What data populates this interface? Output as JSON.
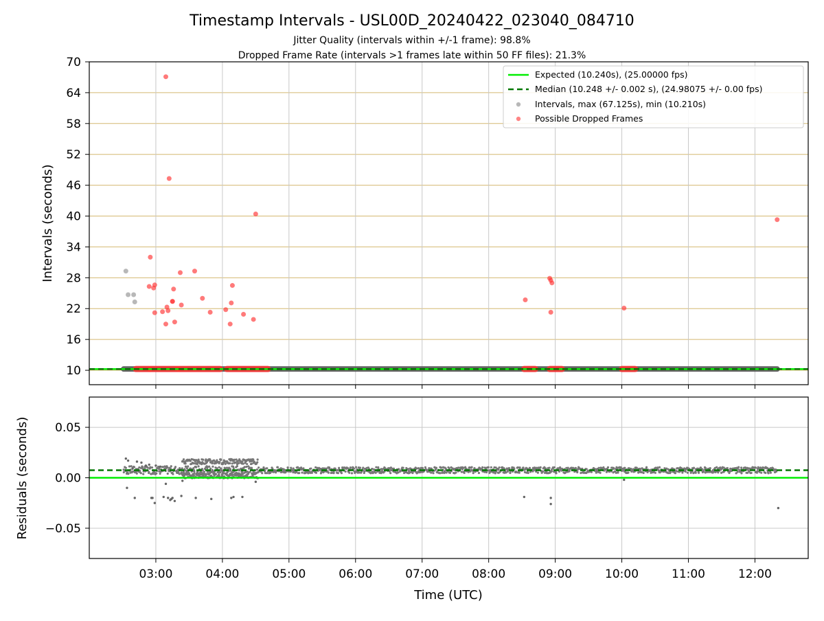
{
  "figure": {
    "title": "Timestamp Intervals - USL00D_20240422_023040_084710",
    "subtitle_1": "Jitter Quality (intervals within +/-1 frame): 98.8%",
    "subtitle_2": "Dropped Frame Rate (intervals >1 frames late within 50 FF files): 21.3%",
    "xlabel": "Time (UTC)"
  },
  "colors": {
    "expected": "#00ee00",
    "median": "#007700",
    "intervals": "#888888",
    "dropped": "#ff3333",
    "horizontal_grid": "#d4b870",
    "vertical_grid": "#c8c8c8",
    "dense_band": "#555555"
  },
  "chart_data": [
    {
      "type": "scatter",
      "ylabel": "Intervals (seconds)",
      "xlim": [
        "02:00",
        "12:48"
      ],
      "ylim": [
        7.2,
        70
      ],
      "x_ticks": [
        "03:00",
        "04:00",
        "05:00",
        "06:00",
        "07:00",
        "08:00",
        "09:00",
        "10:00",
        "11:00",
        "12:00"
      ],
      "y_ticks": [
        10,
        16,
        22,
        28,
        34,
        40,
        46,
        52,
        58,
        64,
        70
      ],
      "grid": true,
      "legend_position": "top-right",
      "legend": [
        "Expected (10.240s), (25.00000 fps)",
        "Median (10.248 +/- 0.002 s), (24.98075 +/- 0.00 fps)",
        "Intervals, max (67.125s), min (10.210s)",
        "Possible Dropped Frames"
      ],
      "expected_value": 10.24,
      "median_value": 10.248,
      "intervals_band": {
        "x_range": [
          "02:31",
          "12:20"
        ],
        "value": 10.25
      },
      "dropped_bands": [
        {
          "x_range": [
            "02:42",
            "02:54"
          ],
          "value": 10.25
        },
        {
          "x_range": [
            "02:55",
            "03:20"
          ],
          "value": 10.25
        },
        {
          "x_range": [
            "03:21",
            "03:58"
          ],
          "value": 10.25
        },
        {
          "x_range": [
            "04:04",
            "04:41"
          ],
          "value": 10.25
        },
        {
          "x_range": [
            "08:32",
            "08:42"
          ],
          "value": 10.25
        },
        {
          "x_range": [
            "08:55",
            "09:06"
          ],
          "value": 10.25
        },
        {
          "x_range": [
            "10:00",
            "10:12"
          ],
          "value": 10.25
        }
      ],
      "series": [
        {
          "name": "Intervals, max (67.125s), min (10.210s)",
          "points": [
            [
              "02:33",
              29.3
            ],
            [
              "02:35",
              24.7
            ],
            [
              "02:40",
              24.7
            ],
            [
              "02:41",
              23.3
            ]
          ]
        },
        {
          "name": "Possible Dropped Frames",
          "points": [
            [
              "02:54",
              26.3
            ],
            [
              "02:55",
              32.0
            ],
            [
              "02:58",
              26.0
            ],
            [
              "02:59",
              26.6
            ],
            [
              "02:59",
              21.2
            ],
            [
              "03:06",
              21.4
            ],
            [
              "03:09",
              67.1
            ],
            [
              "03:09",
              19.0
            ],
            [
              "03:10",
              22.3
            ],
            [
              "03:11",
              21.6
            ],
            [
              "03:12",
              47.3
            ],
            [
              "03:15",
              23.4
            ],
            [
              "03:15",
              23.4
            ],
            [
              "03:16",
              25.8
            ],
            [
              "03:17",
              19.4
            ],
            [
              "03:22",
              29.0
            ],
            [
              "03:23",
              22.7
            ],
            [
              "03:35",
              29.3
            ],
            [
              "03:42",
              24.0
            ],
            [
              "03:49",
              21.3
            ],
            [
              "04:03",
              21.8
            ],
            [
              "04:07",
              19.0
            ],
            [
              "04:08",
              23.1
            ],
            [
              "04:09",
              26.5
            ],
            [
              "04:19",
              20.9
            ],
            [
              "04:28",
              19.9
            ],
            [
              "04:30",
              40.4
            ],
            [
              "08:33",
              23.7
            ],
            [
              "08:55",
              27.9
            ],
            [
              "08:56",
              27.5
            ],
            [
              "08:57",
              27.0
            ],
            [
              "08:56",
              21.3
            ],
            [
              "10:02",
              22.1
            ],
            [
              "12:20",
              39.3
            ]
          ]
        }
      ]
    },
    {
      "type": "scatter",
      "ylabel": "Residuals (seconds)",
      "xlim": [
        "02:00",
        "12:48"
      ],
      "ylim": [
        -0.08,
        0.08
      ],
      "x_ticks": [
        "03:00",
        "04:00",
        "05:00",
        "06:00",
        "07:00",
        "08:00",
        "09:00",
        "10:00",
        "11:00",
        "12:00"
      ],
      "y_ticks": [
        "0.05",
        "0.00",
        "−0.05"
      ],
      "y_tick_values": [
        0.05,
        0.0,
        -0.05
      ],
      "grid": true,
      "expected_value": 0.0,
      "median_value": 0.0075,
      "residual_bands": [
        {
          "x_range": [
            "02:31",
            "04:32"
          ],
          "center": 0.0075,
          "spread": 0.004
        },
        {
          "x_range": [
            "03:24",
            "04:32"
          ],
          "center": 0.016,
          "spread": 0.0025
        },
        {
          "x_range": [
            "03:24",
            "04:32"
          ],
          "center": 0.002,
          "spread": 0.0025
        },
        {
          "x_range": [
            "04:32",
            "12:20"
          ],
          "center": 0.0075,
          "spread": 0.003
        }
      ],
      "series": [
        {
          "name": "residual outliers",
          "points": [
            [
              "02:33",
              0.019
            ],
            [
              "02:35",
              0.017
            ],
            [
              "02:34",
              -0.01
            ],
            [
              "02:39",
              0.009
            ],
            [
              "02:41",
              -0.02
            ],
            [
              "02:43",
              0.016
            ],
            [
              "02:47",
              0.015
            ],
            [
              "02:51",
              0.012
            ],
            [
              "02:54",
              0.013
            ],
            [
              "02:56",
              -0.02
            ],
            [
              "02:57",
              -0.02
            ],
            [
              "02:59",
              -0.025
            ],
            [
              "03:00",
              0.012
            ],
            [
              "03:04",
              0.011
            ],
            [
              "03:07",
              -0.019
            ],
            [
              "03:09",
              -0.006
            ],
            [
              "03:11",
              -0.02
            ],
            [
              "03:13",
              -0.022
            ],
            [
              "03:14",
              -0.021
            ],
            [
              "03:15",
              -0.02
            ],
            [
              "03:17",
              -0.023
            ],
            [
              "03:23",
              -0.018
            ],
            [
              "03:24",
              -0.003
            ],
            [
              "03:36",
              -0.02
            ],
            [
              "03:50",
              -0.021
            ],
            [
              "04:08",
              -0.02
            ],
            [
              "04:10",
              -0.019
            ],
            [
              "04:18",
              -0.019
            ],
            [
              "04:30",
              -0.004
            ],
            [
              "08:32",
              -0.019
            ],
            [
              "08:56",
              -0.02
            ],
            [
              "08:56",
              -0.026
            ],
            [
              "10:02",
              -0.002
            ],
            [
              "12:21",
              -0.03
            ]
          ]
        }
      ]
    }
  ]
}
